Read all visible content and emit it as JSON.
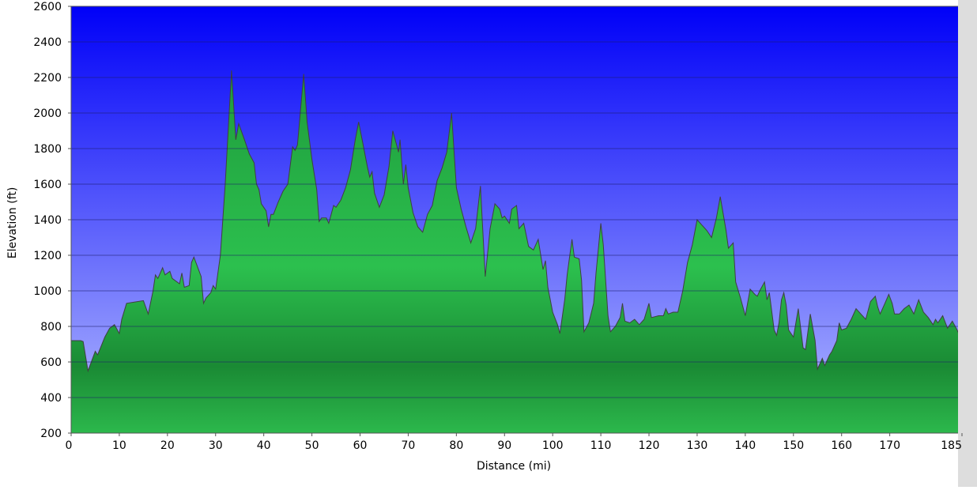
{
  "chart_data": {
    "type": "area",
    "xlabel": "Distance   (mi)",
    "ylabel": "Elevation (ft)",
    "xlim": [
      0,
      185
    ],
    "ylim": [
      200,
      2600
    ],
    "xticks": [
      0,
      10,
      20,
      30,
      40,
      50,
      60,
      70,
      80,
      90,
      100,
      110,
      120,
      130,
      140,
      150,
      160,
      170,
      185
    ],
    "yticks": [
      200,
      400,
      600,
      800,
      1000,
      1200,
      1400,
      1600,
      1800,
      2000,
      2200,
      2400,
      2600
    ],
    "grid": true,
    "color": "#22b04a",
    "x": [
      0,
      2,
      2.5,
      3.5,
      5,
      5.5,
      7,
      8,
      9,
      10,
      10.5,
      11.5,
      15,
      16,
      17,
      17.5,
      18,
      19,
      19.5,
      20.5,
      21,
      22.5,
      23,
      23.5,
      24.5,
      25,
      25.5,
      27,
      27.5,
      28,
      29,
      29.5,
      30,
      31,
      32,
      33.3,
      34.2,
      34.8,
      36,
      37,
      38,
      38.5,
      39,
      39.5,
      40.5,
      41,
      41.5,
      42,
      43,
      44,
      45,
      46,
      46.5,
      47,
      48.3,
      49,
      50,
      51,
      51.5,
      52,
      53,
      53.5,
      54.5,
      55,
      56,
      57,
      58,
      59,
      59.7,
      60.5,
      61.5,
      62,
      62.5,
      63,
      64,
      65,
      66,
      66.8,
      68,
      68.3,
      69,
      69.5,
      70,
      71,
      72,
      73,
      74,
      75,
      76,
      77,
      78,
      79,
      80,
      81,
      82,
      83,
      84,
      85,
      86,
      87,
      88,
      89,
      89.5,
      90,
      91,
      91.5,
      92.5,
      93,
      94,
      95,
      96,
      97,
      98,
      98.5,
      99,
      100,
      101,
      101.5,
      102.5,
      103,
      104,
      104.5,
      105.5,
      106,
      106.5,
      107.5,
      108.5,
      109,
      110,
      110.5,
      111.5,
      112,
      113,
      114,
      114.5,
      115,
      116,
      117,
      118,
      119,
      120,
      120.5,
      122,
      123,
      123.5,
      124,
      125,
      126,
      127,
      128,
      129,
      130,
      131,
      132,
      133,
      134,
      134.8,
      136,
      136.5,
      137.5,
      138,
      139,
      140,
      141,
      142,
      142.5,
      143,
      144,
      144.5,
      145,
      146,
      146.5,
      147,
      147.5,
      148,
      148.5,
      149,
      150,
      151,
      152,
      152.5,
      153.5,
      154.5,
      155,
      156,
      156.5,
      157.5,
      158,
      159,
      159.5,
      160,
      161,
      162,
      163,
      164,
      165,
      166,
      167,
      167.5,
      168,
      169,
      169.8,
      170.5,
      171,
      172,
      173,
      174,
      175,
      176,
      177,
      178,
      179,
      179.5,
      180,
      181,
      182,
      183,
      184,
      185
    ],
    "values": [
      720,
      720,
      715,
      550,
      660,
      640,
      740,
      790,
      810,
      760,
      840,
      930,
      945,
      870,
      1000,
      1090,
      1070,
      1130,
      1090,
      1110,
      1070,
      1040,
      1100,
      1020,
      1030,
      1160,
      1190,
      1080,
      930,
      960,
      990,
      1030,
      1010,
      1200,
      1600,
      2240,
      1850,
      1940,
      1850,
      1770,
      1720,
      1600,
      1570,
      1490,
      1450,
      1360,
      1430,
      1430,
      1500,
      1560,
      1600,
      1810,
      1790,
      1820,
      2220,
      1950,
      1740,
      1570,
      1390,
      1410,
      1410,
      1380,
      1480,
      1470,
      1510,
      1580,
      1680,
      1850,
      1950,
      1840,
      1700,
      1640,
      1670,
      1550,
      1470,
      1540,
      1700,
      1900,
      1780,
      1850,
      1600,
      1710,
      1580,
      1440,
      1360,
      1330,
      1430,
      1480,
      1620,
      1690,
      1780,
      2000,
      1580,
      1460,
      1360,
      1270,
      1350,
      1590,
      1080,
      1350,
      1490,
      1460,
      1410,
      1420,
      1380,
      1460,
      1480,
      1350,
      1380,
      1250,
      1230,
      1290,
      1120,
      1170,
      1020,
      880,
      810,
      760,
      950,
      1090,
      1290,
      1190,
      1180,
      1060,
      770,
      820,
      930,
      1100,
      1380,
      1260,
      860,
      770,
      800,
      850,
      930,
      830,
      820,
      840,
      810,
      840,
      930,
      850,
      860,
      860,
      900,
      870,
      880,
      880,
      1000,
      1160,
      1260,
      1400,
      1370,
      1340,
      1300,
      1410,
      1530,
      1340,
      1240,
      1270,
      1050,
      960,
      860,
      1010,
      980,
      970,
      1000,
      1050,
      950,
      990,
      780,
      750,
      820,
      950,
      990,
      920,
      780,
      740,
      900,
      680,
      670,
      870,
      720,
      560,
      620,
      580,
      640,
      660,
      720,
      820,
      780,
      790,
      840,
      900,
      870,
      840,
      940,
      970,
      910,
      870,
      930,
      980,
      930,
      870,
      870,
      900,
      920,
      870,
      950,
      880,
      850,
      810,
      840,
      820,
      860,
      790,
      830,
      780,
      715
    ]
  }
}
